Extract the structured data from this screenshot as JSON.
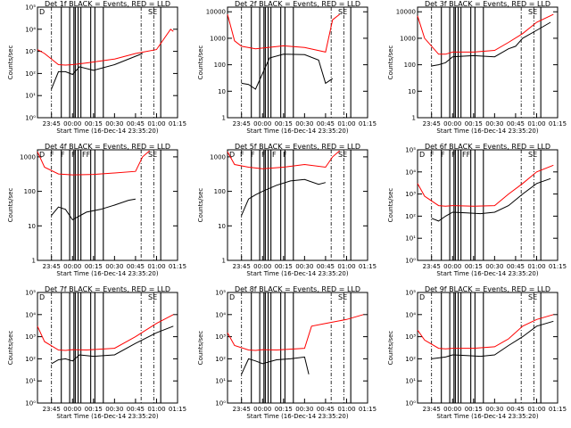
{
  "figure": {
    "xlabel": "Start Time (16-Dec-14 23:35:20)",
    "ylabel": "Counts/sec",
    "x_tick_labels": [
      "23:45",
      "00:00",
      "00:15",
      "00:30",
      "00:45",
      "01:00",
      "01:15"
    ],
    "colors": {
      "events": "#000000",
      "lld": "#ff0000",
      "axes": "#000000",
      "background": "#ffffff"
    },
    "time_range": [
      "23:35",
      "01:15"
    ]
  },
  "chart_data": [
    {
      "id": 1,
      "title": "Det 1f BLACK = Events, RED = LLD",
      "type": "line",
      "yscale": "log",
      "ytick_labels": [
        "10⁰",
        "10¹",
        "10²",
        "10³",
        "10⁴",
        "10⁵"
      ],
      "ylim": [
        1,
        100000
      ],
      "event_markers": [
        "D",
        "SE"
      ],
      "series": [
        {
          "name": "Events",
          "x": [
            "23:45",
            "23:50",
            "23:55",
            "00:00",
            "00:05",
            "00:15",
            "00:30",
            "00:45",
            "00:50"
          ],
          "y": [
            20,
            120,
            120,
            90,
            200,
            140,
            250,
            600,
            800
          ]
        },
        {
          "name": "LLD",
          "x": [
            "23:35",
            "23:40",
            "23:50",
            "23:55",
            "00:00",
            "00:10",
            "00:30",
            "00:45",
            "01:00",
            "01:10",
            "01:12"
          ],
          "y": [
            1200,
            800,
            250,
            240,
            250,
            300,
            450,
            800,
            1200,
            10000,
            8000
          ]
        }
      ]
    },
    {
      "id": 2,
      "title": "Det 2f BLACK = Events, RED = LLD",
      "type": "line",
      "yscale": "log",
      "ytick_labels": [
        "1",
        "10",
        "100",
        "1000",
        "10000"
      ],
      "ylim": [
        1,
        15000
      ],
      "event_markers": [
        "SE"
      ],
      "series": [
        {
          "name": "Events",
          "x": [
            "23:45",
            "23:50",
            "23:55",
            "00:05",
            "00:15",
            "00:30",
            "00:40",
            "00:45",
            "00:50"
          ],
          "y": [
            20,
            18,
            12,
            180,
            250,
            240,
            150,
            20,
            30
          ]
        },
        {
          "name": "LLD",
          "x": [
            "23:35",
            "23:40",
            "23:45",
            "23:55",
            "00:15",
            "00:30",
            "00:45",
            "00:50",
            "00:55"
          ],
          "y": [
            8000,
            800,
            500,
            400,
            520,
            450,
            300,
            5000,
            8000
          ]
        }
      ]
    },
    {
      "id": 3,
      "title": "Det 3f BLACK = Events, RED = LLD",
      "type": "line",
      "yscale": "log",
      "ytick_labels": [
        "1",
        "10",
        "100",
        "1000",
        "10000"
      ],
      "ylim": [
        1,
        15000
      ],
      "event_markers": [
        "SE"
      ],
      "series": [
        {
          "name": "Events",
          "x": [
            "23:45",
            "23:50",
            "23:55",
            "00:00",
            "00:15",
            "00:30",
            "00:40",
            "00:45",
            "00:50",
            "01:00",
            "01:10"
          ],
          "y": [
            90,
            100,
            120,
            200,
            220,
            200,
            400,
            500,
            1000,
            2000,
            4000
          ]
        },
        {
          "name": "LLD",
          "x": [
            "23:35",
            "23:40",
            "23:50",
            "23:55",
            "00:00",
            "00:15",
            "00:30",
            "00:40",
            "00:50",
            "01:00",
            "01:12"
          ],
          "y": [
            7000,
            1000,
            250,
            250,
            300,
            300,
            350,
            700,
            1500,
            4000,
            8000
          ]
        }
      ]
    },
    {
      "id": 4,
      "title": "Det 4f BLACK = Events, RED = LLD",
      "type": "line",
      "yscale": "log",
      "ytick_labels": [
        "1",
        "10",
        "100",
        "1000"
      ],
      "ylim": [
        1,
        1600
      ],
      "event_markers": [
        "D",
        "F",
        "F",
        "F",
        "FF",
        "SE"
      ],
      "series": [
        {
          "name": "Events",
          "x": [
            "23:45",
            "23:50",
            "23:55",
            "00:00",
            "00:10",
            "00:20",
            "00:30",
            "00:40",
            "00:45"
          ],
          "y": [
            20,
            35,
            30,
            15,
            25,
            30,
            40,
            55,
            60
          ]
        },
        {
          "name": "LLD",
          "x": [
            "23:35",
            "23:40",
            "23:50",
            "00:00",
            "00:15",
            "00:30",
            "00:45",
            "00:50",
            "00:55"
          ],
          "y": [
            1400,
            500,
            320,
            300,
            310,
            340,
            380,
            1000,
            1500
          ]
        }
      ]
    },
    {
      "id": 5,
      "title": "Det 5f BLACK = Events, RED = LLD",
      "type": "line",
      "yscale": "log",
      "ytick_labels": [
        "1",
        "10",
        "100",
        "1000"
      ],
      "ylim": [
        1,
        1600
      ],
      "event_markers": [
        "D",
        "F",
        "F",
        "F",
        "F",
        "F",
        "SE"
      ],
      "series": [
        {
          "name": "Events",
          "x": [
            "23:45",
            "23:50",
            "23:55",
            "00:00",
            "00:10",
            "00:20",
            "00:30",
            "00:40",
            "00:45"
          ],
          "y": [
            20,
            60,
            80,
            100,
            150,
            200,
            220,
            160,
            180
          ]
        },
        {
          "name": "LLD",
          "x": [
            "23:35",
            "23:40",
            "23:50",
            "00:00",
            "00:15",
            "00:30",
            "00:45",
            "00:50",
            "00:55"
          ],
          "y": [
            1400,
            600,
            500,
            450,
            500,
            600,
            500,
            1000,
            1500
          ]
        }
      ]
    },
    {
      "id": 6,
      "title": "Det 6f BLACK = Events, RED = LLD",
      "type": "line",
      "yscale": "log",
      "ytick_labels": [
        "10⁰",
        "10¹",
        "10²",
        "10³",
        "10⁴",
        "10⁵"
      ],
      "ylim": [
        1,
        100000
      ],
      "event_markers": [
        "D",
        "F",
        "F",
        "F",
        "FF",
        "SE"
      ],
      "series": [
        {
          "name": "Events",
          "x": [
            "23:45",
            "23:50",
            "23:55",
            "00:00",
            "00:10",
            "00:20",
            "00:30",
            "00:40",
            "00:50",
            "01:00",
            "01:10"
          ],
          "y": [
            80,
            60,
            100,
            150,
            140,
            130,
            150,
            300,
            1000,
            3000,
            5000
          ]
        },
        {
          "name": "LLD",
          "x": [
            "23:35",
            "23:40",
            "23:50",
            "23:55",
            "00:00",
            "00:15",
            "00:30",
            "00:40",
            "00:50",
            "01:00",
            "01:12"
          ],
          "y": [
            3000,
            800,
            300,
            280,
            300,
            280,
            300,
            1000,
            3000,
            10000,
            20000
          ]
        }
      ]
    },
    {
      "id": 7,
      "title": "Det 7f BLACK = Events, RED = LLD",
      "type": "line",
      "yscale": "log",
      "ytick_labels": [
        "10⁰",
        "10¹",
        "10²",
        "10³",
        "10⁴",
        "10⁵"
      ],
      "ylim": [
        1,
        100000
      ],
      "event_markers": [
        "D",
        "SE"
      ],
      "series": [
        {
          "name": "Events",
          "x": [
            "23:45",
            "23:50",
            "23:55",
            "00:00",
            "00:05",
            "00:15",
            "00:30",
            "00:45",
            "01:00",
            "01:12"
          ],
          "y": [
            60,
            90,
            100,
            80,
            150,
            130,
            150,
            500,
            1500,
            3000
          ]
        },
        {
          "name": "LLD",
          "x": [
            "23:35",
            "23:40",
            "23:50",
            "23:55",
            "00:00",
            "00:10",
            "00:30",
            "00:45",
            "01:00",
            "01:12"
          ],
          "y": [
            3000,
            600,
            250,
            240,
            260,
            250,
            300,
            1000,
            4000,
            10000
          ]
        }
      ]
    },
    {
      "id": 8,
      "title": "Det 8f BLACK = Events, RED = LLD",
      "type": "line",
      "yscale": "log",
      "ytick_labels": [
        "10⁰",
        "10¹",
        "10²",
        "10³",
        "10⁴",
        "10⁵"
      ],
      "ylim": [
        1,
        100000
      ],
      "event_markers": [
        "D",
        "SE"
      ],
      "series": [
        {
          "name": "Events",
          "x": [
            "23:45",
            "23:50",
            "23:55",
            "00:00",
            "00:10",
            "00:20",
            "00:30",
            "00:33"
          ],
          "y": [
            20,
            100,
            80,
            60,
            90,
            100,
            120,
            20
          ]
        },
        {
          "name": "LLD",
          "x": [
            "23:35",
            "23:40",
            "23:50",
            "23:55",
            "00:00",
            "00:10",
            "00:30",
            "00:35",
            "00:45",
            "01:00",
            "01:12"
          ],
          "y": [
            1500,
            400,
            250,
            240,
            260,
            250,
            300,
            3000,
            4000,
            6000,
            10000
          ]
        }
      ]
    },
    {
      "id": 9,
      "title": "Det 9f BLACK = Events, RED = LLD",
      "type": "line",
      "yscale": "log",
      "ytick_labels": [
        "10⁰",
        "10¹",
        "10²",
        "10³",
        "10⁴",
        "10⁵"
      ],
      "ylim": [
        1,
        100000
      ],
      "event_markers": [
        "D",
        "SE"
      ],
      "series": [
        {
          "name": "Events",
          "x": [
            "23:45",
            "23:50",
            "23:55",
            "00:00",
            "00:10",
            "00:20",
            "00:30",
            "00:40",
            "00:50",
            "01:00",
            "01:12"
          ],
          "y": [
            100,
            110,
            120,
            150,
            140,
            130,
            150,
            400,
            1000,
            3000,
            5000
          ]
        },
        {
          "name": "LLD",
          "x": [
            "23:35",
            "23:40",
            "23:50",
            "23:55",
            "00:00",
            "00:15",
            "00:30",
            "00:40",
            "00:50",
            "01:00",
            "01:12"
          ],
          "y": [
            2000,
            700,
            300,
            280,
            300,
            300,
            350,
            800,
            3000,
            6000,
            10000
          ]
        }
      ]
    }
  ]
}
